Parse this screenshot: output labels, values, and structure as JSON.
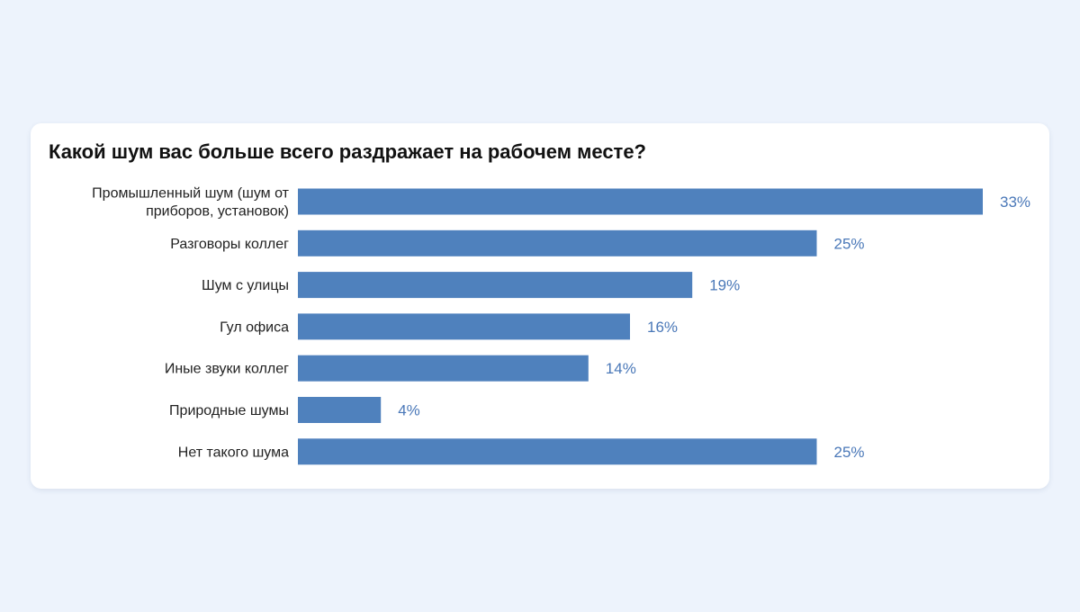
{
  "chart_data": {
    "type": "bar",
    "orientation": "horizontal",
    "title": "Какой шум вас больше всего раздражает на рабочем месте?",
    "categories": [
      [
        "Промышленный шум (шум от",
        "приборов, установок)"
      ],
      [
        "Разговоры коллег"
      ],
      [
        "Шум с улицы"
      ],
      [
        "Гул офиса"
      ],
      [
        "Иные звуки коллег"
      ],
      [
        "Природные шумы"
      ],
      [
        "Нет такого шума"
      ]
    ],
    "values": [
      33,
      25,
      19,
      16,
      14,
      4,
      25
    ],
    "value_labels": [
      "33%",
      "25%",
      "19%",
      "16%",
      "14%",
      "4%",
      "25%"
    ],
    "unit": "%",
    "xlim": [
      0,
      33
    ],
    "grid": false,
    "legend": "none",
    "bar_color": "#4f81bd",
    "value_label_color": "#4a78b8"
  }
}
